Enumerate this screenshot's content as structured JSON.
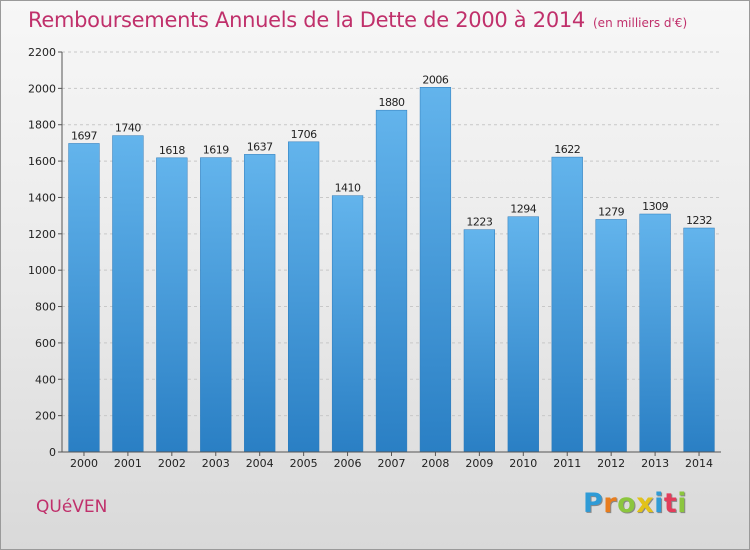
{
  "title": "Remboursements Annuels de la Dette de 2000 à 2014",
  "subtitle": "(en milliers d'€)",
  "city": "QUéVEN",
  "logo": {
    "letters": [
      "P",
      "r",
      "o",
      "x",
      "i",
      "t",
      "i"
    ],
    "colors": [
      "#2f9bd6",
      "#e87d1e",
      "#8cc63e",
      "#e2c21a",
      "#2f9bd6",
      "#e23d5b",
      "#8cc63e"
    ]
  },
  "colors": {
    "bar": "#3f95d8",
    "bar_light": "#63b4ec",
    "title": "#c0306b"
  },
  "chart_data": {
    "type": "bar",
    "title": "Remboursements Annuels de la Dette de 2000 à 2014",
    "categories": [
      "2000",
      "2001",
      "2002",
      "2003",
      "2004",
      "2005",
      "2006",
      "2007",
      "2008",
      "2009",
      "2010",
      "2011",
      "2012",
      "2013",
      "2014"
    ],
    "values": [
      1697,
      1740,
      1618,
      1619,
      1637,
      1706,
      1410,
      1880,
      2006,
      1223,
      1294,
      1622,
      1279,
      1309,
      1232
    ],
    "ylim": [
      0,
      2200
    ],
    "yticks": [
      "0",
      "200",
      "400",
      "600",
      "800",
      "1000",
      "1200",
      "1400",
      "1600",
      "1800",
      "2000",
      "2200"
    ],
    "grid": true,
    "xlabel": "",
    "ylabel": ""
  }
}
